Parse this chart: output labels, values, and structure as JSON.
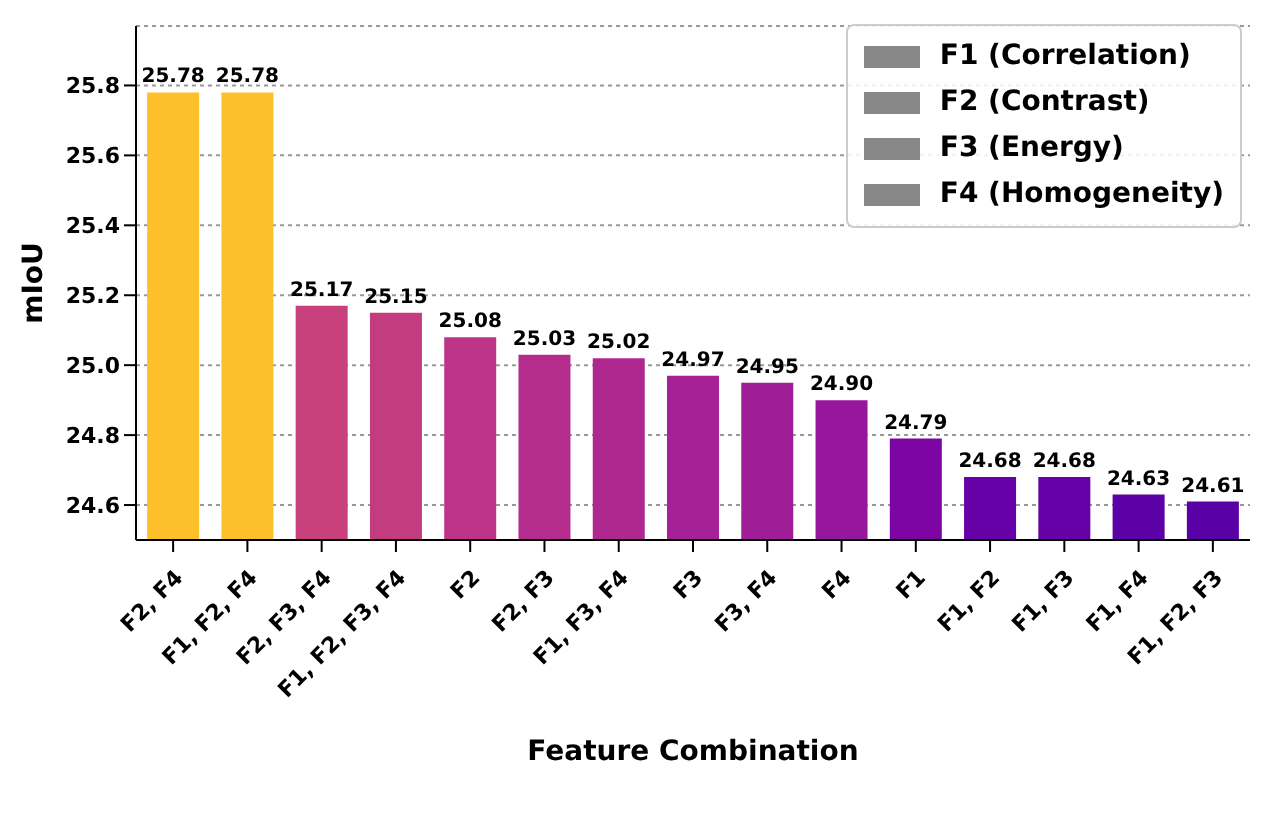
{
  "chart_data": {
    "type": "bar",
    "xlabel": "Feature Combination",
    "ylabel": "mIoU",
    "categories": [
      "F2, F4",
      "F1, F2, F4",
      "F2, F3, F4",
      "F1, F2, F3, F4",
      "F2",
      "F2, F3",
      "F1, F3, F4",
      "F3",
      "F3, F4",
      "F4",
      "F1",
      "F1, F2",
      "F1, F3",
      "F1, F4",
      "F1, F2, F3"
    ],
    "values": [
      25.78,
      25.78,
      25.17,
      25.15,
      25.08,
      25.03,
      25.02,
      24.97,
      24.95,
      24.9,
      24.79,
      24.68,
      24.68,
      24.63,
      24.61
    ],
    "value_labels": [
      "25.78",
      "25.78",
      "25.17",
      "25.15",
      "25.08",
      "25.03",
      "25.02",
      "24.97",
      "24.95",
      "24.90",
      "24.79",
      "24.68",
      "24.68",
      "24.63",
      "24.61"
    ],
    "colors": [
      "#fdc02a",
      "#fdc02a",
      "#c8407c",
      "#c43c80",
      "#bd3488",
      "#b52d8c",
      "#ae2890",
      "#a52195",
      "#a01d98",
      "#96179c",
      "#7d05a4",
      "#6501a7",
      "#6501a7",
      "#5c01a6",
      "#5901a6"
    ],
    "ylim": [
      24.5,
      25.97
    ],
    "yticks": [
      {
        "value": 24.6,
        "label": "24.6"
      },
      {
        "value": 24.8,
        "label": "24.8"
      },
      {
        "value": 25,
        "label": "25.0"
      },
      {
        "value": 25.2,
        "label": "25.2"
      },
      {
        "value": 25.4,
        "label": "25.4"
      },
      {
        "value": 25.6,
        "label": "25.6"
      },
      {
        "value": 25.8,
        "label": "25.8"
      }
    ],
    "grid": "y",
    "annotations": [
      "F1 (Correlation)",
      "F2 (Contrast)",
      "F3 (Energy)",
      "F4 (Homogeneity)"
    ]
  }
}
